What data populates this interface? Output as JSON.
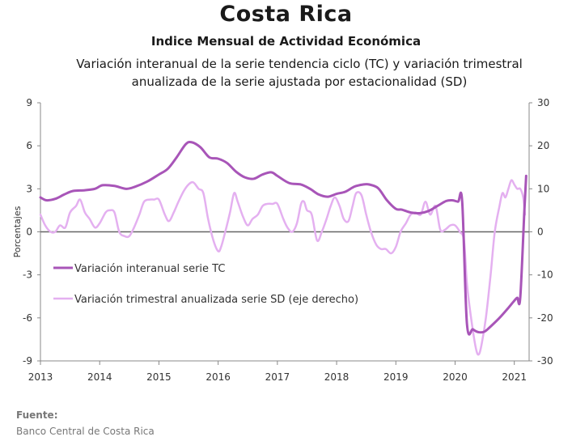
{
  "header": {
    "title": "Costa Rica",
    "subtitle": "Indice Mensual de  Actividad Económica",
    "description": "Variación interanual de la serie tendencia ciclo (TC) y variación trimestral anualizada de la serie ajustada por estacionalidad (SD)"
  },
  "source": {
    "label": "Fuente:",
    "text": "Banco Central de Costa Rica"
  },
  "chart_data": {
    "type": "line",
    "ylabel": "Porcentajes",
    "y_left": {
      "min": -9,
      "max": 9,
      "ticks": [
        -9,
        -6,
        -3,
        0,
        3,
        6,
        9
      ]
    },
    "y_right": {
      "min": -30,
      "max": 30,
      "ticks": [
        -30,
        -20,
        -10,
        0,
        10,
        20,
        30
      ]
    },
    "x": {
      "min": 2013.0,
      "max": 2021.25,
      "ticks": [
        2013,
        2014,
        2015,
        2016,
        2017,
        2018,
        2019,
        2020,
        2021
      ]
    },
    "legend_position": "lower-left",
    "colors": {
      "tc": "#a855b8",
      "sd": "#e4b0f0",
      "zero": "#666666"
    },
    "series": [
      {
        "name": "Variación interanual serie TC",
        "axis": "left",
        "color": "#a855b8",
        "points": [
          [
            2013.0,
            2.4
          ],
          [
            2013.1,
            2.2
          ],
          [
            2013.25,
            2.3
          ],
          [
            2013.4,
            2.6
          ],
          [
            2013.55,
            2.85
          ],
          [
            2013.75,
            2.9
          ],
          [
            2013.92,
            3.0
          ],
          [
            2014.05,
            3.25
          ],
          [
            2014.25,
            3.2
          ],
          [
            2014.45,
            3.0
          ],
          [
            2014.6,
            3.15
          ],
          [
            2014.8,
            3.5
          ],
          [
            2015.0,
            4.0
          ],
          [
            2015.15,
            4.4
          ],
          [
            2015.3,
            5.2
          ],
          [
            2015.45,
            6.1
          ],
          [
            2015.55,
            6.25
          ],
          [
            2015.7,
            5.9
          ],
          [
            2015.85,
            5.2
          ],
          [
            2016.0,
            5.1
          ],
          [
            2016.15,
            4.8
          ],
          [
            2016.3,
            4.2
          ],
          [
            2016.45,
            3.8
          ],
          [
            2016.6,
            3.7
          ],
          [
            2016.75,
            4.0
          ],
          [
            2016.9,
            4.15
          ],
          [
            2017.0,
            3.9
          ],
          [
            2017.2,
            3.4
          ],
          [
            2017.4,
            3.3
          ],
          [
            2017.55,
            3.0
          ],
          [
            2017.7,
            2.6
          ],
          [
            2017.85,
            2.45
          ],
          [
            2018.0,
            2.65
          ],
          [
            2018.15,
            2.8
          ],
          [
            2018.3,
            3.15
          ],
          [
            2018.45,
            3.3
          ],
          [
            2018.55,
            3.3
          ],
          [
            2018.7,
            3.05
          ],
          [
            2018.85,
            2.2
          ],
          [
            2019.0,
            1.6
          ],
          [
            2019.1,
            1.55
          ],
          [
            2019.25,
            1.35
          ],
          [
            2019.4,
            1.3
          ],
          [
            2019.55,
            1.45
          ],
          [
            2019.7,
            1.8
          ],
          [
            2019.85,
            2.15
          ],
          [
            2019.95,
            2.2
          ],
          [
            2020.05,
            2.1
          ],
          [
            2020.12,
            2.1
          ],
          [
            2020.2,
            -6.4
          ],
          [
            2020.3,
            -6.8
          ],
          [
            2020.4,
            -7.0
          ],
          [
            2020.5,
            -6.95
          ],
          [
            2020.6,
            -6.6
          ],
          [
            2020.75,
            -6.0
          ],
          [
            2020.9,
            -5.3
          ],
          [
            2021.0,
            -4.8
          ],
          [
            2021.05,
            -4.6
          ],
          [
            2021.1,
            -4.6
          ],
          [
            2021.17,
            1.5
          ],
          [
            2021.2,
            3.9
          ]
        ]
      },
      {
        "name": "Variación trimestral anualizada serie SD (eje derecho)",
        "axis": "right",
        "color": "#e4b0f0",
        "points": [
          [
            2013.0,
            4
          ],
          [
            2013.08,
            1.5
          ],
          [
            2013.17,
            0
          ],
          [
            2013.25,
            0
          ],
          [
            2013.33,
            1.5
          ],
          [
            2013.42,
            1
          ],
          [
            2013.5,
            4.5
          ],
          [
            2013.6,
            6
          ],
          [
            2013.67,
            7.5
          ],
          [
            2013.75,
            4.5
          ],
          [
            2013.83,
            3
          ],
          [
            2013.92,
            1
          ],
          [
            2014.0,
            2
          ],
          [
            2014.1,
            4.5
          ],
          [
            2014.17,
            5
          ],
          [
            2014.25,
            4.5
          ],
          [
            2014.33,
            0
          ],
          [
            2014.42,
            -1
          ],
          [
            2014.5,
            -1
          ],
          [
            2014.58,
            1
          ],
          [
            2014.67,
            4
          ],
          [
            2014.75,
            7
          ],
          [
            2014.85,
            7.5
          ],
          [
            2014.92,
            7.5
          ],
          [
            2015.0,
            7.5
          ],
          [
            2015.1,
            4
          ],
          [
            2015.17,
            2.5
          ],
          [
            2015.25,
            4.5
          ],
          [
            2015.33,
            7
          ],
          [
            2015.42,
            9.5
          ],
          [
            2015.5,
            11
          ],
          [
            2015.58,
            11.5
          ],
          [
            2015.67,
            10
          ],
          [
            2015.75,
            9
          ],
          [
            2015.83,
            3
          ],
          [
            2015.92,
            -2
          ],
          [
            2016.0,
            -4.5
          ],
          [
            2016.05,
            -3.5
          ],
          [
            2016.12,
            0
          ],
          [
            2016.2,
            4.5
          ],
          [
            2016.27,
            9
          ],
          [
            2016.33,
            7
          ],
          [
            2016.42,
            3.5
          ],
          [
            2016.5,
            1.5
          ],
          [
            2016.58,
            3
          ],
          [
            2016.67,
            4
          ],
          [
            2016.75,
            6
          ],
          [
            2016.83,
            6.5
          ],
          [
            2016.92,
            6.5
          ],
          [
            2017.0,
            6.5
          ],
          [
            2017.1,
            3
          ],
          [
            2017.17,
            1
          ],
          [
            2017.25,
            0
          ],
          [
            2017.33,
            2
          ],
          [
            2017.4,
            6.5
          ],
          [
            2017.45,
            7
          ],
          [
            2017.5,
            5
          ],
          [
            2017.58,
            4
          ],
          [
            2017.67,
            -2
          ],
          [
            2017.75,
            0
          ],
          [
            2017.83,
            3
          ],
          [
            2017.9,
            6
          ],
          [
            2017.97,
            8
          ],
          [
            2018.05,
            6
          ],
          [
            2018.12,
            3
          ],
          [
            2018.2,
            2.5
          ],
          [
            2018.27,
            6
          ],
          [
            2018.33,
            9
          ],
          [
            2018.42,
            8.5
          ],
          [
            2018.5,
            4
          ],
          [
            2018.58,
            0
          ],
          [
            2018.67,
            -3
          ],
          [
            2018.75,
            -4
          ],
          [
            2018.83,
            -4
          ],
          [
            2018.92,
            -5
          ],
          [
            2019.0,
            -3.5
          ],
          [
            2019.08,
            0
          ],
          [
            2019.17,
            2
          ],
          [
            2019.25,
            4
          ],
          [
            2019.33,
            4.5
          ],
          [
            2019.42,
            4
          ],
          [
            2019.5,
            7
          ],
          [
            2019.58,
            4
          ],
          [
            2019.67,
            6
          ],
          [
            2019.75,
            0.5
          ],
          [
            2019.83,
            0.5
          ],
          [
            2019.92,
            1.5
          ],
          [
            2020.0,
            1.5
          ],
          [
            2020.08,
            0
          ],
          [
            2020.15,
            -2
          ],
          [
            2020.2,
            -12
          ],
          [
            2020.27,
            -20
          ],
          [
            2020.35,
            -27
          ],
          [
            2020.4,
            -28.5
          ],
          [
            2020.45,
            -26
          ],
          [
            2020.52,
            -20
          ],
          [
            2020.6,
            -10
          ],
          [
            2020.67,
            0
          ],
          [
            2020.75,
            6
          ],
          [
            2020.8,
            9
          ],
          [
            2020.85,
            8
          ],
          [
            2020.9,
            10
          ],
          [
            2020.95,
            12
          ],
          [
            2021.0,
            11
          ],
          [
            2021.05,
            10
          ],
          [
            2021.1,
            10
          ],
          [
            2021.15,
            8
          ],
          [
            2021.18,
            4
          ]
        ]
      }
    ]
  }
}
